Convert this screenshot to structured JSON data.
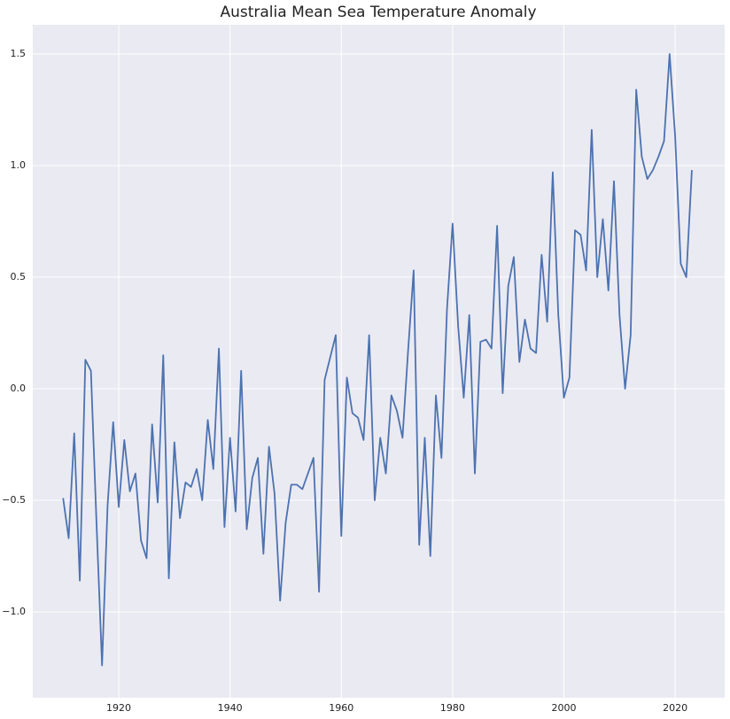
{
  "chart_data": {
    "type": "line",
    "title": "Australia Mean Sea Temperature Anomaly",
    "x": [
      1910,
      1911,
      1912,
      1913,
      1914,
      1915,
      1916,
      1917,
      1918,
      1919,
      1920,
      1921,
      1922,
      1923,
      1924,
      1925,
      1926,
      1927,
      1928,
      1929,
      1930,
      1931,
      1932,
      1933,
      1934,
      1935,
      1936,
      1937,
      1938,
      1939,
      1940,
      1941,
      1942,
      1943,
      1944,
      1945,
      1946,
      1947,
      1948,
      1949,
      1950,
      1951,
      1952,
      1953,
      1954,
      1955,
      1956,
      1957,
      1958,
      1959,
      1960,
      1961,
      1962,
      1963,
      1964,
      1965,
      1966,
      1967,
      1968,
      1969,
      1970,
      1971,
      1972,
      1973,
      1974,
      1975,
      1976,
      1977,
      1978,
      1979,
      1980,
      1981,
      1982,
      1983,
      1984,
      1985,
      1986,
      1987,
      1988,
      1989,
      1990,
      1991,
      1992,
      1993,
      1994,
      1995,
      1996,
      1997,
      1998,
      1999,
      2000,
      2001,
      2002,
      2003,
      2004,
      2005,
      2006,
      2007,
      2008,
      2009,
      2010,
      2011,
      2012,
      2013,
      2014,
      2015,
      2016,
      2017,
      2018,
      2019,
      2020,
      2021,
      2022,
      2023
    ],
    "series": [
      {
        "color": "#4c72b0",
        "values": [
          -0.49,
          -0.67,
          -0.2,
          -0.86,
          0.13,
          0.08,
          -0.6,
          -1.24,
          -0.52,
          -0.15,
          -0.53,
          -0.23,
          -0.46,
          -0.38,
          -0.68,
          -0.76,
          -0.16,
          -0.51,
          0.15,
          -0.85,
          -0.24,
          -0.58,
          -0.42,
          -0.44,
          -0.36,
          -0.5,
          -0.14,
          -0.36,
          0.18,
          -0.62,
          -0.22,
          -0.55,
          0.08,
          -0.63,
          -0.4,
          -0.31,
          -0.74,
          -0.26,
          -0.47,
          -0.95,
          -0.6,
          -0.43,
          -0.43,
          -0.45,
          -0.38,
          -0.31,
          -0.91,
          0.04,
          0.14,
          0.24,
          -0.66,
          0.05,
          -0.11,
          -0.13,
          -0.23,
          0.24,
          -0.5,
          -0.22,
          -0.38,
          -0.03,
          -0.1,
          -0.22,
          0.17,
          0.53,
          -0.7,
          -0.22,
          -0.75,
          -0.03,
          -0.31,
          0.36,
          0.74,
          0.28,
          -0.04,
          0.33,
          -0.38,
          0.21,
          0.22,
          0.18,
          0.73,
          -0.02,
          0.46,
          0.59,
          0.12,
          0.31,
          0.18,
          0.16,
          0.6,
          0.3,
          0.97,
          0.33,
          -0.04,
          0.05,
          0.71,
          0.69,
          0.53,
          1.16,
          0.5,
          0.76,
          0.44,
          0.93,
          0.33,
          0.0,
          0.24,
          1.34,
          1.04,
          0.94,
          0.98,
          1.04,
          1.11,
          1.5,
          1.13,
          0.56,
          0.5,
          0.98
        ]
      }
    ],
    "xlim": [
      1904.55,
      2028.9
    ],
    "xticks": [
      1920,
      1940,
      1960,
      1980,
      2000,
      2020
    ],
    "ylim": [
      -1.385,
      1.631
    ],
    "yticks": [
      {
        "value": -1.0,
        "label": "−1.0"
      },
      {
        "value": -0.5,
        "label": "−0.5"
      },
      {
        "value": 0.0,
        "label": "0.0"
      },
      0.5,
      {
        "value": 1.0,
        "label": "1.0"
      },
      1.5
    ],
    "grid": true,
    "background": "#eaeaf2"
  }
}
